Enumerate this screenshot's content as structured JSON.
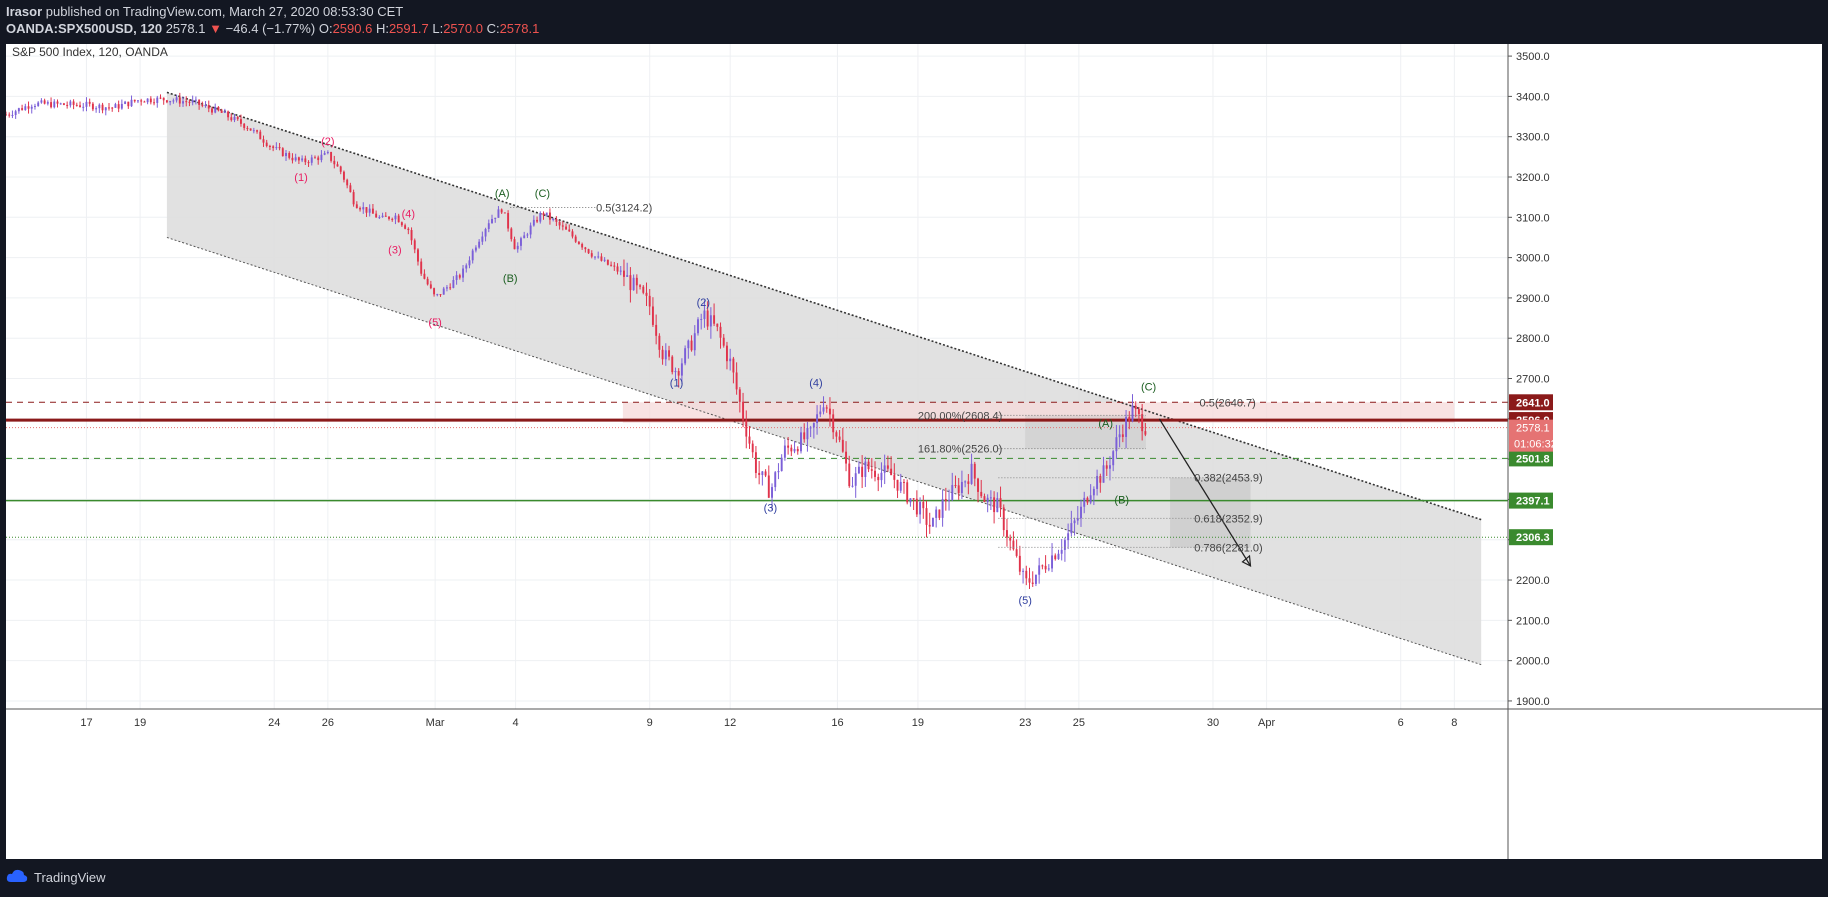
{
  "header": {
    "author": "Irasor",
    "published_text": " published on TradingView.com, March 27, 2020 08:53:30 CET",
    "symbol": "OANDA:SPX500USD, 120",
    "last": "2578.1",
    "down_arrow": "▼",
    "change": "−46.4 (−1.77%)",
    "o_label": "O:",
    "o_value": "2590.6",
    "h_label": "H:",
    "h_value": "2591.7",
    "l_label": "L:",
    "l_value": "2570.0",
    "c_label": "C:",
    "c_value": "2578.1"
  },
  "footer": {
    "brand": "TradingView"
  },
  "colors": {
    "bull": "#7b5fd8",
    "bear": "#e0334b",
    "channel_fill": "#dedede",
    "red_line": "#8b1a1a",
    "green_line": "#3a8a2e",
    "pink_band": "#f6d9d9",
    "wave_pink": "#e91e63",
    "wave_navy": "#303f9f",
    "wave_green": "#1b5e20"
  },
  "chart_data": {
    "type": "candlestick",
    "title": "S&P 500 Index, 120, OANDA",
    "y_range": [
      1880,
      3530
    ],
    "y_ticks": [
      "3500.0",
      "3400.0",
      "3300.0",
      "3200.0",
      "3100.0",
      "3000.0",
      "2900.0",
      "2800.0",
      "2700.0",
      "2600.0",
      "2500.0",
      "2400.0",
      "2300.0",
      "2200.0",
      "2100.0",
      "2000.0",
      "1900.0"
    ],
    "x_ticks": [
      {
        "label": "17",
        "date": "2020-02-17"
      },
      {
        "label": "19",
        "date": "2020-02-19"
      },
      {
        "label": "24",
        "date": "2020-02-24"
      },
      {
        "label": "26",
        "date": "2020-02-26"
      },
      {
        "label": "Mar",
        "date": "2020-03-01"
      },
      {
        "label": "4",
        "date": "2020-03-04"
      },
      {
        "label": "9",
        "date": "2020-03-09"
      },
      {
        "label": "12",
        "date": "2020-03-12"
      },
      {
        "label": "16",
        "date": "2020-03-16"
      },
      {
        "label": "19",
        "date": "2020-03-19"
      },
      {
        "label": "23",
        "date": "2020-03-23"
      },
      {
        "label": "25",
        "date": "2020-03-25"
      },
      {
        "label": "30",
        "date": "2020-03-30"
      },
      {
        "label": "Apr",
        "date": "2020-04-01"
      },
      {
        "label": "6",
        "date": "2020-04-06"
      },
      {
        "label": "8",
        "date": "2020-04-08"
      }
    ],
    "price_path": [
      [
        "2020-02-14",
        3355
      ],
      [
        "2020-02-15",
        3382
      ],
      [
        "2020-02-17",
        3378
      ],
      [
        "2020-02-18",
        3372
      ],
      [
        "2020-02-19",
        3392
      ],
      [
        "2020-02-20",
        3393
      ],
      [
        "2020-02-21",
        3385
      ],
      [
        "2020-02-22",
        3360
      ],
      [
        "2020-02-23",
        3325
      ],
      [
        "2020-02-24",
        3270
      ],
      [
        "2020-02-25",
        3237
      ],
      [
        "2020-02-26",
        3255
      ],
      [
        "2020-02-26.5",
        3212
      ],
      [
        "2020-02-27",
        3135
      ],
      [
        "2020-02-28",
        3095
      ],
      [
        "2020-02-28.5",
        3105
      ],
      [
        "2020-02-29",
        3070
      ],
      [
        "2020-02-29.5",
        2960
      ],
      [
        "2020-03-01",
        2900
      ],
      [
        "2020-03-02",
        2960
      ],
      [
        "2020-03-02.5",
        3030
      ],
      [
        "2020-03-03",
        3090
      ],
      [
        "2020-03-03.5",
        3122
      ],
      [
        "2020-03-04",
        3020
      ],
      [
        "2020-03-04.5",
        3070
      ],
      [
        "2020-03-05",
        3112
      ],
      [
        "2020-03-06",
        3060
      ],
      [
        "2020-03-07",
        3000
      ],
      [
        "2020-03-08",
        2960
      ],
      [
        "2020-03-08.5",
        2920
      ],
      [
        "2020-03-09",
        2880
      ],
      [
        "2020-03-09.5",
        2760
      ],
      [
        "2020-03-10",
        2720
      ],
      [
        "2020-03-10.5",
        2780
      ],
      [
        "2020-03-11",
        2860
      ],
      [
        "2020-03-11.5",
        2820
      ],
      [
        "2020-03-12",
        2740
      ],
      [
        "2020-03-12.5",
        2600
      ],
      [
        "2020-03-13",
        2470
      ],
      [
        "2020-03-13.5",
        2420
      ],
      [
        "2020-03-14",
        2520
      ],
      [
        "2020-03-15",
        2560
      ],
      [
        "2020-03-15.5",
        2650
      ],
      [
        "2020-03-16",
        2560
      ],
      [
        "2020-03-16.5",
        2440
      ],
      [
        "2020-03-17",
        2480
      ],
      [
        "2020-03-18",
        2460
      ],
      [
        "2020-03-19",
        2380
      ],
      [
        "2020-03-19.5",
        2330
      ],
      [
        "2020-03-20",
        2400
      ],
      [
        "2020-03-20.5",
        2430
      ],
      [
        "2020-03-21",
        2470
      ],
      [
        "2020-03-21.5",
        2400
      ],
      [
        "2020-03-22",
        2380
      ],
      [
        "2020-03-22.5",
        2280
      ],
      [
        "2020-03-23",
        2190
      ],
      [
        "2020-03-23.5",
        2220
      ],
      [
        "2020-03-24",
        2260
      ],
      [
        "2020-03-24.5",
        2300
      ],
      [
        "2020-03-25",
        2360
      ],
      [
        "2020-03-25.5",
        2440
      ],
      [
        "2020-03-26",
        2470
      ],
      [
        "2020-03-26.5",
        2560
      ],
      [
        "2020-03-27",
        2620
      ],
      [
        "2020-03-27.5",
        2580
      ]
    ],
    "channel": {
      "upper_line": [
        [
          "2020-02-20",
          3410
        ],
        [
          "2020-04-09",
          2350
        ]
      ],
      "lower_line": [
        [
          "2020-02-20",
          3050
        ],
        [
          "2020-04-09",
          1990
        ]
      ]
    },
    "horizontal_levels": [
      {
        "price": 2641.0,
        "label": "2641.0",
        "color": "#8b1a1a",
        "style": "dashed"
      },
      {
        "price": 2596.9,
        "label": "2596.9",
        "color": "#8b1a1a",
        "style": "solid"
      },
      {
        "price": 2501.8,
        "label": "2501.8",
        "color": "#3a8a2e",
        "style": "dashed"
      },
      {
        "price": 2397.1,
        "label": "2397.1",
        "color": "#3a8a2e",
        "style": "solid"
      },
      {
        "price": 2306.3,
        "label": "2306.3",
        "color": "#3a8a2e",
        "style": "dotted"
      }
    ],
    "current_price_tag": {
      "price": 2578.1,
      "label": "2578.1",
      "countdown": "01:06:32"
    },
    "fib_labels": [
      {
        "text": "0.5(3124.2)",
        "price": 3124.2,
        "date": "2020-03-07"
      },
      {
        "text": "0.5(2640.7)",
        "price": 2640.7,
        "date": "2020-03-29.5"
      },
      {
        "text": "200.00%(2608.4)",
        "price": 2608.4,
        "date": "2020-03-19"
      },
      {
        "text": "161.80%(2526.0)",
        "price": 2526.0,
        "date": "2020-03-19"
      },
      {
        "text": "0.382(2453.9)",
        "price": 2453.9,
        "date": "2020-03-29.3"
      },
      {
        "text": "0.618(2352.9)",
        "price": 2352.9,
        "date": "2020-03-29.3"
      },
      {
        "text": "0.786(2281.0)",
        "price": 2281.0,
        "date": "2020-03-29.3"
      }
    ],
    "wave_labels": [
      {
        "text": "(1)",
        "price": 3190,
        "date": "2020-02-25",
        "group": "pink"
      },
      {
        "text": "(2)",
        "price": 3280,
        "date": "2020-02-26",
        "group": "pink"
      },
      {
        "text": "(3)",
        "price": 3010,
        "date": "2020-02-28.5",
        "group": "pink"
      },
      {
        "text": "(4)",
        "price": 3100,
        "date": "2020-02-29",
        "group": "pink"
      },
      {
        "text": "(5)",
        "price": 2830,
        "date": "2020-03-01",
        "group": "pink"
      },
      {
        "text": "(A)",
        "price": 3150,
        "date": "2020-03-03.5",
        "group": "green"
      },
      {
        "text": "(B)",
        "price": 2940,
        "date": "2020-03-03.8",
        "group": "green"
      },
      {
        "text": "(C)",
        "price": 3150,
        "date": "2020-03-05",
        "group": "green"
      },
      {
        "text": "(1)",
        "price": 2680,
        "date": "2020-03-10",
        "group": "navy"
      },
      {
        "text": "(2)",
        "price": 2880,
        "date": "2020-03-11",
        "group": "navy"
      },
      {
        "text": "(3)",
        "price": 2370,
        "date": "2020-03-13.5",
        "group": "navy"
      },
      {
        "text": "(4)",
        "price": 2680,
        "date": "2020-03-15.2",
        "group": "navy"
      },
      {
        "text": "(5)",
        "price": 2140,
        "date": "2020-03-23",
        "group": "navy"
      },
      {
        "text": "(A)",
        "price": 2580,
        "date": "2020-03-26",
        "group": "green"
      },
      {
        "text": "(B)",
        "price": 2390,
        "date": "2020-03-26.6",
        "group": "green"
      },
      {
        "text": "(C)",
        "price": 2670,
        "date": "2020-03-27.6",
        "group": "green"
      }
    ]
  }
}
